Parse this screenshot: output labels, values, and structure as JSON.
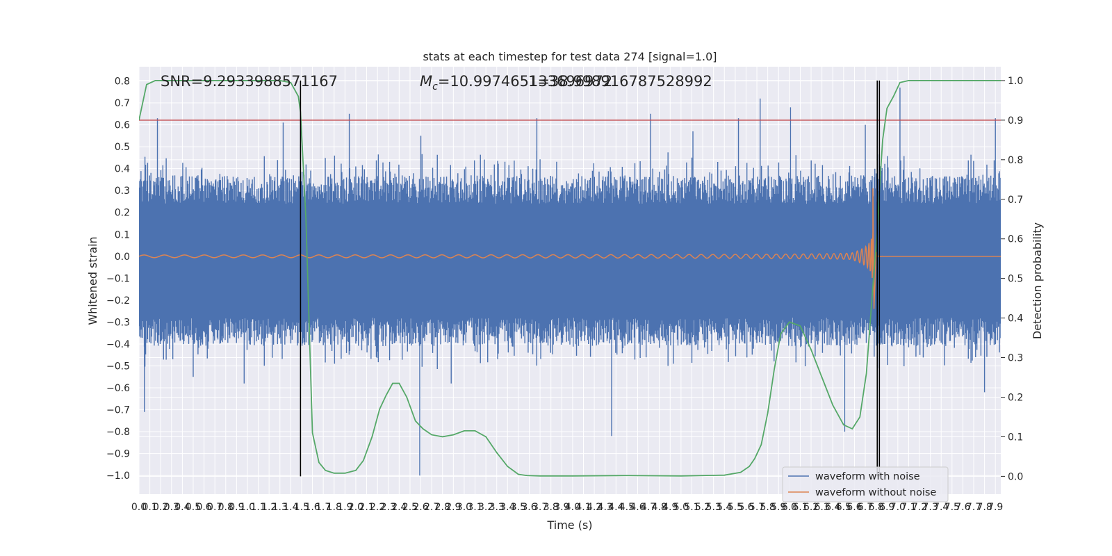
{
  "chart_data": {
    "type": "line",
    "title": "stats at each timestep for test data 274 [signal=1.0]",
    "xlabel": "Time (s)",
    "ylabel_left": "Whitened strain",
    "ylabel_right": "Detection probability",
    "xlim": [
      0.0,
      7.95
    ],
    "ylim_left": [
      -1.085,
      0.865
    ],
    "ylim_right": [
      -0.045,
      1.035
    ],
    "x_ticks": [
      "0.0",
      "0.1",
      "0.2",
      "0.3",
      "0.4",
      "0.5",
      "0.6",
      "0.7",
      "0.8",
      "0.9",
      "1.0",
      "1.1",
      "1.2",
      "1.3",
      "1.4",
      "1.5",
      "1.6",
      "1.7",
      "1.8",
      "1.9",
      "2.0",
      "2.1",
      "2.2",
      "2.3",
      "2.4",
      "2.5",
      "2.6",
      "2.7",
      "2.8",
      "2.9",
      "3.0",
      "3.1",
      "3.2",
      "3.3",
      "3.4",
      "3.5",
      "3.6",
      "3.7",
      "3.8",
      "3.9",
      "4.0",
      "4.1",
      "4.2",
      "4.3",
      "4.4",
      "4.5",
      "4.6",
      "4.7",
      "4.8",
      "4.9",
      "5.0",
      "5.1",
      "5.2",
      "5.3",
      "5.4",
      "5.5",
      "5.6",
      "5.7",
      "5.8",
      "5.9",
      "6.0",
      "6.1",
      "6.2",
      "6.3",
      "6.4",
      "6.5",
      "6.6",
      "6.7",
      "6.8",
      "6.9",
      "7.0",
      "7.1",
      "7.2",
      "7.3",
      "7.4",
      "7.5",
      "7.6",
      "7.7",
      "7.8",
      "7.9"
    ],
    "y_ticks_left": [
      "−1.0",
      "−0.9",
      "−0.8",
      "−0.7",
      "−0.6",
      "−0.5",
      "−0.4",
      "−0.3",
      "−0.2",
      "−0.1",
      "0.0",
      "0.1",
      "0.2",
      "0.3",
      "0.4",
      "0.5",
      "0.6",
      "0.7",
      "0.8"
    ],
    "y_ticks_right": [
      "0.0",
      "0.1",
      "0.2",
      "0.3",
      "0.4",
      "0.5",
      "0.6",
      "0.7",
      "0.8",
      "0.9",
      "1.0"
    ],
    "annotations": {
      "snr": "SNR=9.2933988571167",
      "mc_prefix": "M",
      "mc_sub": "c",
      "mc_value": "=10.997465133696972",
      "mc_overlap": "1=38.998916787528992"
    },
    "threshold": {
      "value": 0.9,
      "axis": "right",
      "color": "#c44e52"
    },
    "vertical_markers": [
      1.49,
      6.81,
      6.83
    ],
    "legend": {
      "location": "lower-right",
      "entries": [
        {
          "label": "waveform with noise",
          "color": "#4c72b0"
        },
        {
          "label": "waveform without noise",
          "color": "#dd8452"
        }
      ]
    },
    "series": [
      {
        "name": "waveform with noise",
        "axis": "left",
        "color": "#4c72b0",
        "kind": "noise-envelope",
        "spikes": [
          [
            0.05,
            -0.71
          ],
          [
            0.17,
            0.63
          ],
          [
            0.5,
            -0.55
          ],
          [
            0.97,
            -0.58
          ],
          [
            1.33,
            0.61
          ],
          [
            1.49,
            0.51
          ],
          [
            1.94,
            0.65
          ],
          [
            2.59,
            -1.0
          ],
          [
            2.6,
            0.55
          ],
          [
            2.88,
            -0.58
          ],
          [
            3.67,
            0.63
          ],
          [
            4.36,
            -0.82
          ],
          [
            4.72,
            0.65
          ],
          [
            5.11,
            0.57
          ],
          [
            5.53,
            0.63
          ],
          [
            5.73,
            0.72
          ],
          [
            6.01,
            0.68
          ],
          [
            6.51,
            -0.8
          ],
          [
            6.7,
            0.6
          ],
          [
            6.83,
            0.75
          ],
          [
            7.02,
            0.77
          ],
          [
            7.8,
            -0.62
          ],
          [
            7.9,
            0.63
          ]
        ]
      },
      {
        "name": "waveform without noise",
        "axis": "left",
        "color": "#dd8452",
        "kind": "chirp",
        "t_merger": 6.77,
        "peak_positive": 0.31,
        "peak_negative": -0.24
      },
      {
        "name": "detection probability",
        "axis": "right",
        "color": "#55a868",
        "x": [
          0.0,
          0.07,
          0.15,
          0.3,
          0.6,
          1.0,
          1.3,
          1.4,
          1.47,
          1.49,
          1.54,
          1.6,
          1.66,
          1.72,
          1.8,
          1.9,
          2.0,
          2.07,
          2.15,
          2.22,
          2.28,
          2.34,
          2.4,
          2.47,
          2.55,
          2.62,
          2.7,
          2.8,
          2.9,
          3.0,
          3.1,
          3.2,
          3.3,
          3.4,
          3.5,
          3.58,
          3.7,
          4.0,
          4.5,
          5.0,
          5.4,
          5.55,
          5.63,
          5.68,
          5.74,
          5.8,
          5.86,
          5.92,
          6.0,
          6.1,
          6.2,
          6.3,
          6.4,
          6.5,
          6.58,
          6.65,
          6.71,
          6.77,
          6.81,
          6.83,
          6.86,
          6.9,
          6.96,
          7.02,
          7.1,
          7.2,
          7.5,
          7.95
        ],
        "y": [
          0.9,
          0.99,
          1.0,
          1.0,
          1.0,
          1.0,
          1.0,
          0.995,
          0.96,
          0.92,
          0.65,
          0.11,
          0.035,
          0.015,
          0.008,
          0.008,
          0.015,
          0.04,
          0.1,
          0.17,
          0.205,
          0.235,
          0.235,
          0.2,
          0.14,
          0.12,
          0.105,
          0.1,
          0.105,
          0.115,
          0.115,
          0.1,
          0.06,
          0.025,
          0.005,
          0.002,
          0.001,
          0.001,
          0.002,
          0.001,
          0.003,
          0.01,
          0.025,
          0.045,
          0.08,
          0.16,
          0.27,
          0.36,
          0.39,
          0.38,
          0.32,
          0.25,
          0.18,
          0.13,
          0.12,
          0.15,
          0.26,
          0.48,
          0.62,
          0.72,
          0.85,
          0.93,
          0.96,
          0.995,
          1.0,
          1.0,
          1.0,
          1.0
        ]
      }
    ]
  }
}
